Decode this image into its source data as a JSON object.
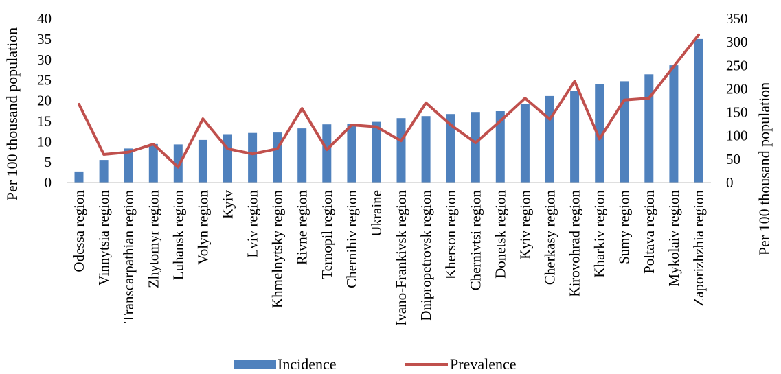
{
  "chart_data": {
    "type": "bar",
    "categories": [
      "Odessa region",
      "Vinnytsia region",
      "Transcarpathian region",
      "Zhytomyr region",
      "Luhansk region",
      "Volyn region",
      "Kyiv",
      "Lviv region",
      "Khmelnytsky region",
      "Rivne region",
      "Ternopil region",
      "Chernihiv region",
      "Ukraine",
      "Ivano-Frankivsk region",
      "Dnipropetrovsk region",
      "Kherson region",
      "Chernivtsi region",
      "Donetsk region",
      "Kyiv region",
      "Cherkasy region",
      "Kirovohrad region",
      "Kharkiv region",
      "Sumy region",
      "Poltava region",
      "Mykolaiv region",
      "Zaporizhzhia region"
    ],
    "series": [
      {
        "name": "Incidence",
        "type": "bar",
        "axis": "left",
        "color": "#4f81bd",
        "values": [
          2.7,
          5.5,
          8.3,
          9.4,
          9.3,
          10.4,
          11.8,
          12.1,
          12.2,
          13.2,
          14.2,
          14.4,
          14.8,
          15.7,
          16.2,
          16.7,
          17.2,
          17.4,
          19.2,
          21.1,
          22.3,
          24.0,
          24.7,
          26.4,
          28.6,
          35.0
        ]
      },
      {
        "name": "Prevalence",
        "type": "line",
        "axis": "right",
        "color": "#c0504d",
        "values": [
          167,
          60,
          65,
          82,
          33,
          136,
          72,
          61,
          72,
          158,
          70,
          123,
          119,
          89,
          170,
          123,
          85,
          131,
          180,
          135,
          216,
          93,
          176,
          180,
          248,
          315
        ]
      }
    ],
    "ylabel": "Per 100 thousand population",
    "y2label": "Per 100 thousand population",
    "ylim": [
      0,
      40
    ],
    "y2lim": [
      0,
      350
    ],
    "yticks": [
      "0",
      "5",
      "10",
      "15",
      "20",
      "25",
      "30",
      "35",
      "40"
    ],
    "y2ticks": [
      "0",
      "50",
      "100",
      "150",
      "200",
      "250",
      "300",
      "350"
    ],
    "grid": false,
    "legend_position": "bottom"
  }
}
